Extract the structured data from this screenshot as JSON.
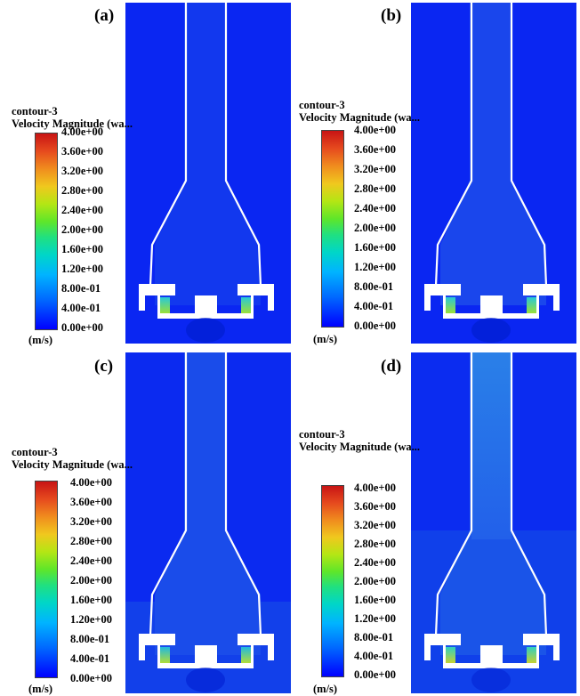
{
  "panels": [
    {
      "label": "(a)"
    },
    {
      "label": "(b)"
    },
    {
      "label": "(c)"
    },
    {
      "label": "(d)"
    }
  ],
  "legend": {
    "title_line1": "contour-3",
    "title_line2": "Velocity Magnitude (wa...",
    "ticks": [
      "4.00e+00",
      "3.60e+00",
      "3.20e+00",
      "2.80e+00",
      "2.40e+00",
      "2.00e+00",
      "1.60e+00",
      "1.20e+00",
      "8.00e-01",
      "4.00e-01",
      "0.00e+00"
    ],
    "unit": "(m/s)"
  },
  "colors": {
    "background_field": "#0a26f2",
    "wall": "#ffffff",
    "colorbar_max": "#c81414",
    "colorbar_min": "#0000ff"
  }
}
